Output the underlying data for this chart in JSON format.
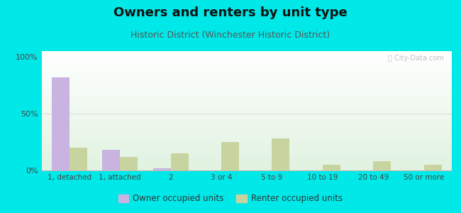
{
  "title": "Owners and renters by unit type",
  "subtitle": "Historic District (Winchester Historic District)",
  "categories": [
    "1, detached",
    "1, attached",
    "2",
    "3 or 4",
    "5 to 9",
    "10 to 19",
    "20 to 49",
    "50 or more"
  ],
  "owner_values": [
    82,
    18,
    2,
    0,
    0,
    0,
    0,
    0
  ],
  "renter_values": [
    20,
    12,
    15,
    25,
    28,
    5,
    8,
    5
  ],
  "owner_color": "#c9b3e0",
  "renter_color": "#c8d4a0",
  "title_fontsize": 13,
  "subtitle_fontsize": 9,
  "ylabel_ticks": [
    "0%",
    "50%",
    "100%"
  ],
  "ytick_vals": [
    0,
    50,
    100
  ],
  "ylim": [
    0,
    105
  ],
  "bar_width": 0.35,
  "figure_bg": "#00e8e8",
  "legend_owner": "Owner occupied units",
  "legend_renter": "Renter occupied units",
  "watermark": "City-Data.com",
  "grid50_color": "#dddddd"
}
